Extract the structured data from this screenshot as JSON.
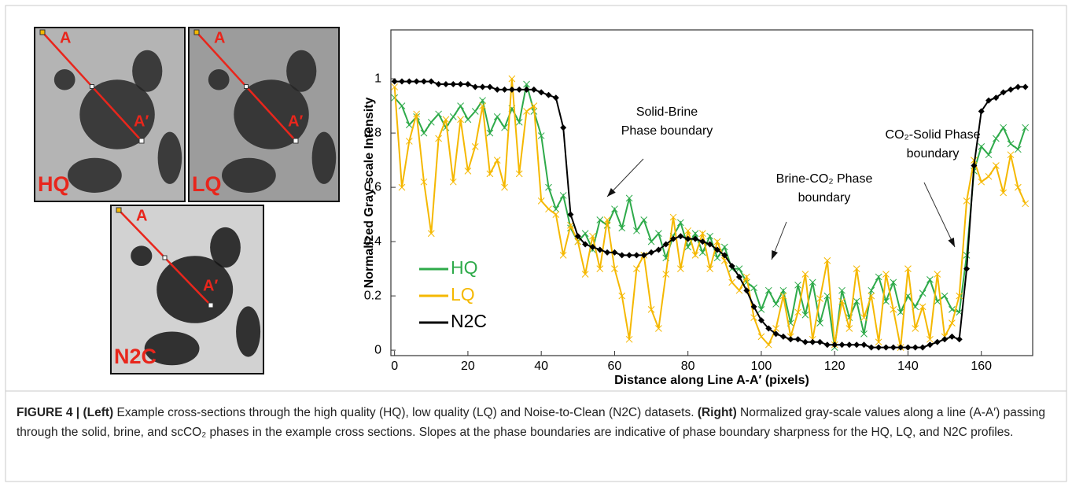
{
  "images": [
    {
      "label": "HQ",
      "point_a": "A",
      "point_b": "A′"
    },
    {
      "label": "LQ",
      "point_a": "A",
      "point_b": "A′"
    },
    {
      "label": "N2C",
      "point_a": "A",
      "point_b": "A′"
    }
  ],
  "chart_data": {
    "type": "line",
    "y_label": "Normalized Gray-scale Intensity",
    "x_label": "Distance along Line A-A′ (pixels)",
    "xlim": [
      -1,
      174
    ],
    "ylim": [
      -0.02,
      1.18
    ],
    "xticks": [
      0,
      20,
      40,
      60,
      80,
      100,
      120,
      140,
      160
    ],
    "yticks": [
      0,
      0.2,
      0.4,
      0.6,
      0.8,
      1
    ],
    "x": [
      0,
      2,
      4,
      6,
      8,
      10,
      12,
      14,
      16,
      18,
      20,
      22,
      24,
      26,
      28,
      30,
      32,
      34,
      36,
      38,
      40,
      42,
      44,
      46,
      48,
      50,
      52,
      54,
      56,
      58,
      60,
      62,
      64,
      66,
      68,
      70,
      72,
      74,
      76,
      78,
      80,
      82,
      84,
      86,
      88,
      90,
      92,
      94,
      96,
      98,
      100,
      102,
      104,
      106,
      108,
      110,
      112,
      114,
      116,
      118,
      120,
      122,
      124,
      126,
      128,
      130,
      132,
      134,
      136,
      138,
      140,
      142,
      144,
      146,
      148,
      150,
      152,
      154,
      156,
      158,
      160,
      162,
      164,
      166,
      168,
      170,
      172
    ],
    "series": [
      {
        "name": "HQ",
        "color": "#2eaa4a",
        "marker": "x",
        "values": [
          0.93,
          0.9,
          0.83,
          0.86,
          0.8,
          0.84,
          0.87,
          0.82,
          0.86,
          0.9,
          0.85,
          0.88,
          0.92,
          0.8,
          0.86,
          0.82,
          0.89,
          0.84,
          0.98,
          0.88,
          0.79,
          0.6,
          0.52,
          0.57,
          0.45,
          0.4,
          0.43,
          0.37,
          0.48,
          0.46,
          0.52,
          0.45,
          0.56,
          0.44,
          0.48,
          0.4,
          0.43,
          0.34,
          0.42,
          0.47,
          0.38,
          0.43,
          0.36,
          0.42,
          0.34,
          0.38,
          0.3,
          0.3,
          0.25,
          0.23,
          0.15,
          0.22,
          0.17,
          0.22,
          0.1,
          0.24,
          0.13,
          0.25,
          0.1,
          0.2,
          0.01,
          0.22,
          0.12,
          0.18,
          0.06,
          0.22,
          0.27,
          0.18,
          0.25,
          0.14,
          0.2,
          0.16,
          0.21,
          0.26,
          0.18,
          0.2,
          0.15,
          0.14,
          0.35,
          0.66,
          0.75,
          0.72,
          0.78,
          0.82,
          0.76,
          0.74,
          0.82
        ]
      },
      {
        "name": "LQ",
        "color": "#f5b800",
        "marker": "x",
        "values": [
          0.97,
          0.6,
          0.77,
          0.87,
          0.62,
          0.43,
          0.78,
          0.85,
          0.62,
          0.85,
          0.66,
          0.75,
          0.9,
          0.65,
          0.7,
          0.6,
          1.0,
          0.65,
          0.88,
          0.9,
          0.55,
          0.52,
          0.5,
          0.35,
          0.46,
          0.4,
          0.28,
          0.42,
          0.3,
          0.48,
          0.3,
          0.2,
          0.04,
          0.3,
          0.35,
          0.15,
          0.08,
          0.28,
          0.49,
          0.3,
          0.44,
          0.35,
          0.43,
          0.3,
          0.4,
          0.33,
          0.25,
          0.22,
          0.27,
          0.12,
          0.05,
          0.02,
          0.08,
          0.2,
          0.05,
          0.14,
          0.28,
          0.04,
          0.19,
          0.33,
          0.02,
          0.18,
          0.08,
          0.3,
          0.12,
          0.2,
          0.03,
          0.28,
          0.15,
          0.01,
          0.3,
          0.08,
          0.16,
          0.04,
          0.28,
          0.05,
          0.1,
          0.2,
          0.55,
          0.7,
          0.62,
          0.64,
          0.68,
          0.58,
          0.72,
          0.6,
          0.54
        ]
      },
      {
        "name": "N2C",
        "color": "#000000",
        "marker": "diamond",
        "values": [
          0.99,
          0.99,
          0.99,
          0.99,
          0.99,
          0.99,
          0.98,
          0.98,
          0.98,
          0.98,
          0.98,
          0.97,
          0.97,
          0.97,
          0.96,
          0.96,
          0.96,
          0.96,
          0.96,
          0.96,
          0.95,
          0.94,
          0.93,
          0.82,
          0.5,
          0.42,
          0.39,
          0.38,
          0.37,
          0.36,
          0.36,
          0.35,
          0.35,
          0.35,
          0.35,
          0.36,
          0.37,
          0.39,
          0.41,
          0.42,
          0.41,
          0.41,
          0.4,
          0.39,
          0.37,
          0.35,
          0.31,
          0.27,
          0.22,
          0.16,
          0.11,
          0.08,
          0.06,
          0.05,
          0.04,
          0.04,
          0.03,
          0.03,
          0.03,
          0.02,
          0.02,
          0.02,
          0.02,
          0.02,
          0.02,
          0.01,
          0.01,
          0.01,
          0.01,
          0.01,
          0.01,
          0.01,
          0.01,
          0.02,
          0.03,
          0.04,
          0.05,
          0.04,
          0.3,
          0.68,
          0.88,
          0.92,
          0.93,
          0.95,
          0.96,
          0.97,
          0.97
        ]
      }
    ],
    "annotations": [
      {
        "text": [
          "Solid-Brine",
          "Phase boundary"
        ]
      },
      {
        "text": [
          "Brine-CO₂ Phase",
          "boundary"
        ]
      },
      {
        "text": [
          "CO₂-Solid Phase",
          "boundary"
        ]
      }
    ]
  },
  "caption": {
    "label": "FIGURE 4 |",
    "left_tag": "(Left)",
    "left_text": "Example cross-sections through the high quality (HQ), low quality (LQ) and Noise-to-Clean (N2C) datasets.",
    "right_tag": "(Right)",
    "right_text": "Normalized gray-scale values along a line (A-A′) passing through the solid, brine, and scCO₂ phases in the example cross sections. Slopes at the phase boundaries are indicative of phase boundary sharpness for the HQ, LQ, and N2C profiles."
  }
}
